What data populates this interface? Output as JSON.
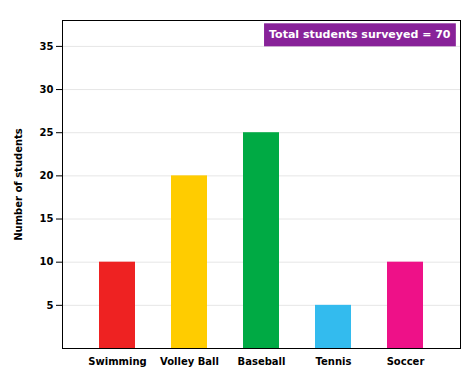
{
  "chart_data": {
    "type": "bar",
    "categories": [
      "Swimming",
      "Volley Ball",
      "Baseball",
      "Tennis",
      "Soccer"
    ],
    "values": [
      10,
      20,
      25,
      5,
      10
    ],
    "colors": [
      "#ee2222",
      "#ffcc00",
      "#00aa44",
      "#33bbee",
      "#ee1188"
    ],
    "ylabel": "Number of students",
    "ylim": [
      0,
      38
    ],
    "yticks": [
      5,
      10,
      15,
      20,
      25,
      30,
      35
    ],
    "grid": true,
    "annotation": "Total students surveyed = 70"
  }
}
